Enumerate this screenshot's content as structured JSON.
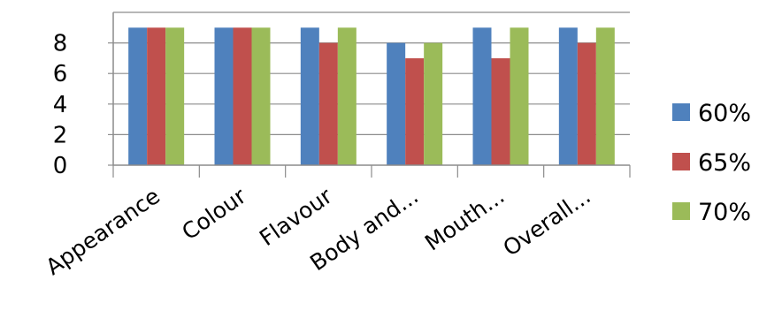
{
  "chart_data": {
    "type": "bar",
    "categories": [
      "Appearance",
      "Colour",
      "Flavour",
      "Body and...",
      "Mouth...",
      "Overall..."
    ],
    "series": [
      {
        "name": "60%",
        "color": "#4f81bd",
        "values": [
          9,
          9,
          9,
          8,
          9,
          9
        ]
      },
      {
        "name": "65%",
        "color": "#c0504d",
        "values": [
          9,
          9,
          8,
          7,
          7,
          8
        ]
      },
      {
        "name": "70%",
        "color": "#9bbb59",
        "values": [
          9,
          9,
          9,
          8,
          9,
          9
        ]
      }
    ],
    "yticks": [
      "0",
      "2",
      "4",
      "6",
      "8"
    ],
    "ylim": [
      0,
      10
    ],
    "grid": true,
    "legend_position": "right"
  }
}
